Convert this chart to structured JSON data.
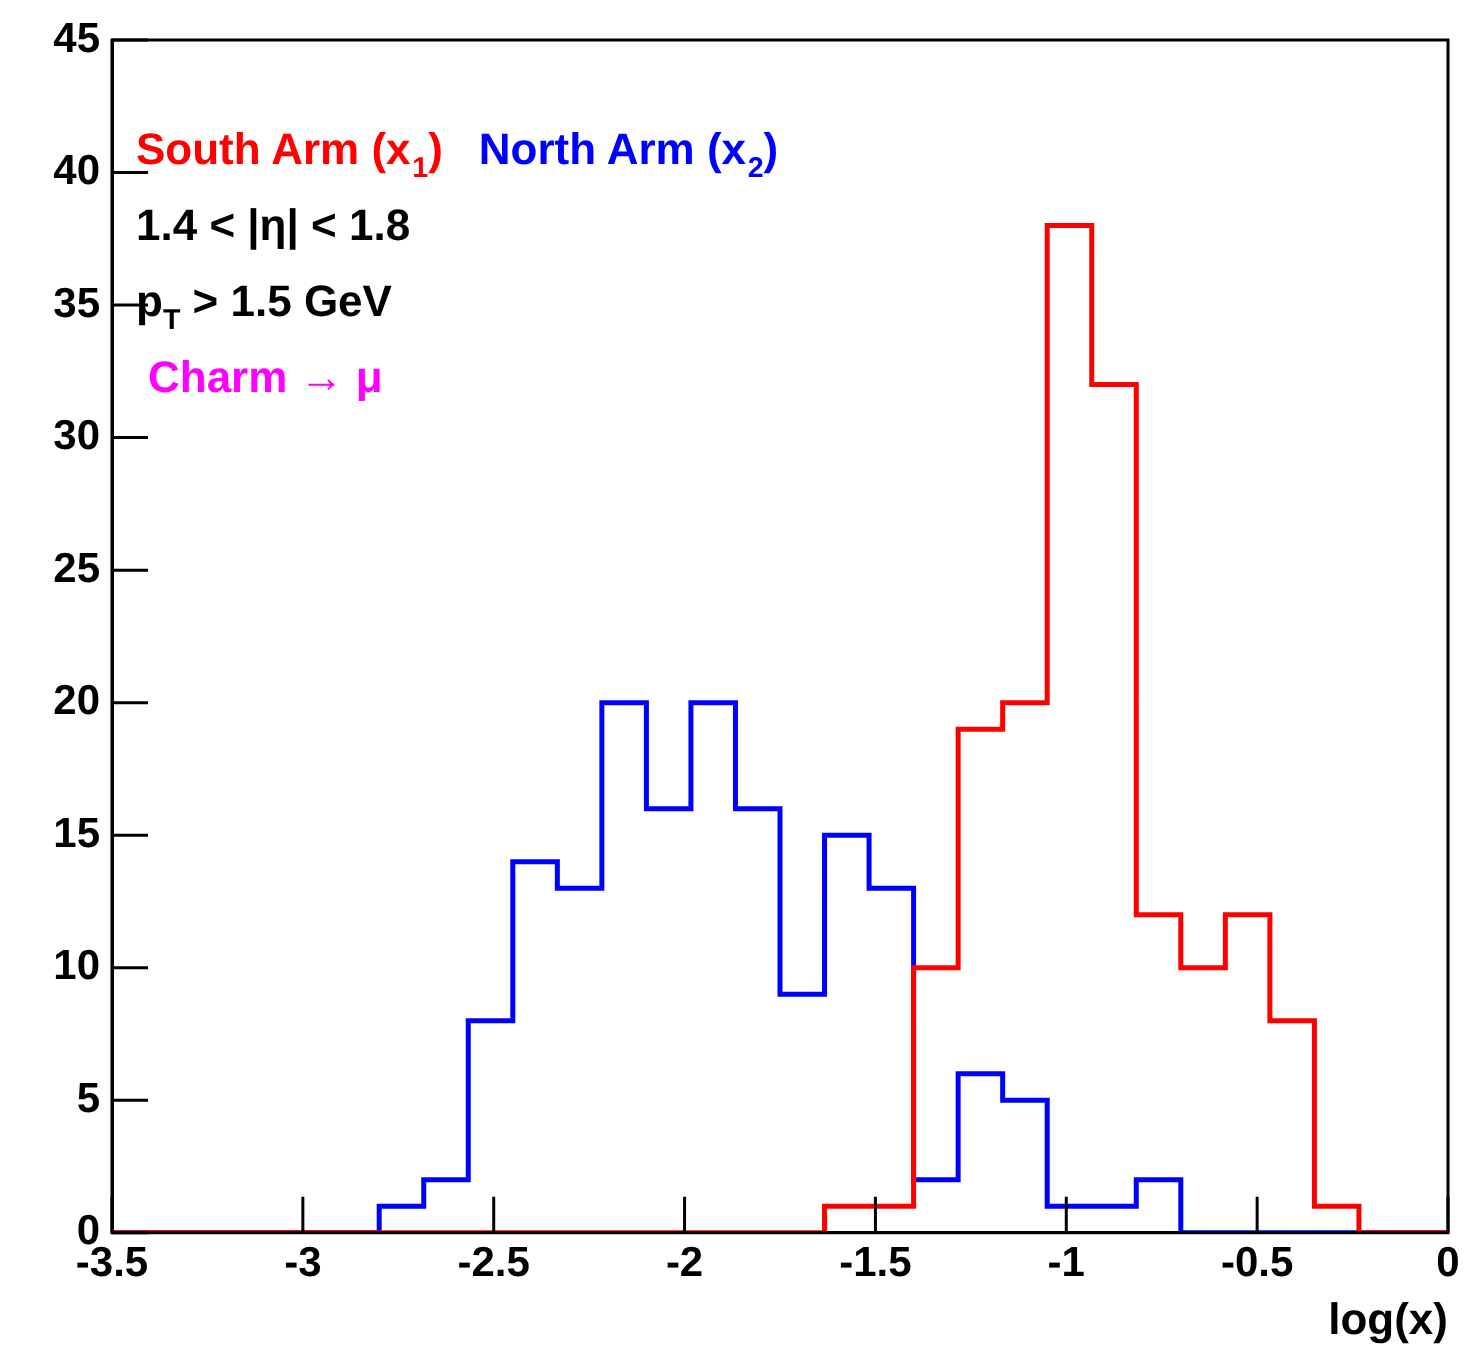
{
  "chart_data": {
    "type": "histogram",
    "xlabel": "log(x)",
    "bins": [
      -3.5,
      -3.3833,
      -3.2667,
      -3.15,
      -3.0333,
      -2.9167,
      -2.8,
      -2.6833,
      -2.5667,
      -2.45,
      -2.3333,
      -2.2167,
      -2.1,
      -1.9833,
      -1.8667,
      -1.75,
      -1.6333,
      -1.5167,
      -1.4,
      -1.2833,
      -1.1667,
      -1.05,
      -0.9333,
      -0.8167,
      -0.7,
      -0.5833,
      -0.4667,
      -0.35,
      -0.2333,
      -0.1167,
      0
    ],
    "series": [
      {
        "name": "South Arm (x$_{1}$)",
        "color": "#ff0000",
        "values": [
          0,
          0,
          0,
          0,
          0,
          0,
          0,
          0,
          0,
          0,
          0,
          0,
          0,
          0,
          0,
          0,
          1,
          1,
          10,
          19,
          20,
          38,
          32,
          12,
          10,
          12,
          8,
          1,
          0,
          0
        ]
      },
      {
        "name": "North Arm (x$_{2}$)",
        "color": "#0000ff",
        "values": [
          0,
          0,
          0,
          0,
          0,
          0,
          1,
          2,
          8,
          14,
          13,
          20,
          16,
          20,
          16,
          9,
          15,
          13,
          2,
          6,
          5,
          1,
          1,
          2,
          0,
          0,
          0,
          0,
          0,
          0
        ]
      }
    ],
    "xlim": [
      -3.5,
      0
    ],
    "xticks": [
      {
        "value": -3.5,
        "label": "-3.5"
      },
      {
        "value": -3,
        "label": "-3"
      },
      {
        "value": -2.5,
        "label": "-2.5"
      },
      {
        "value": -2,
        "label": "-2"
      },
      {
        "value": -1.5,
        "label": "-1.5"
      },
      {
        "value": -1,
        "label": "-1"
      },
      {
        "value": -0.5,
        "label": "-0.5"
      },
      {
        "value": 0,
        "label": "0"
      }
    ],
    "ylim": [
      0,
      45
    ],
    "yticks": [
      0,
      5,
      10,
      15,
      20,
      25,
      30,
      35,
      40,
      45
    ],
    "annotations": [
      "1.4 < |η| < 1.8",
      "p$_{T}$ > 1.5 GeV",
      "Charm → μ"
    ],
    "grid": false,
    "legend": false
  }
}
